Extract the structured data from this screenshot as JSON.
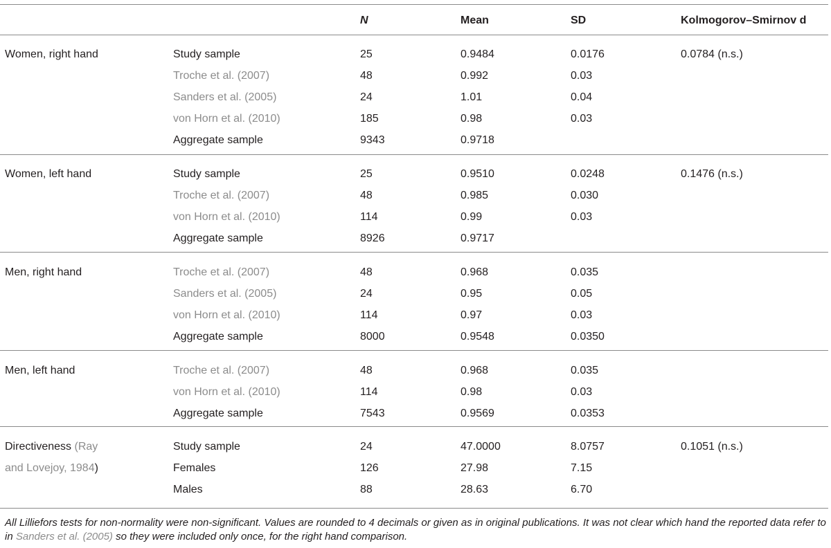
{
  "header": {
    "n": "N",
    "mean": "Mean",
    "sd": "SD",
    "ks": "Kolmogorov–Smirnov d"
  },
  "groups": [
    {
      "label": "Women, right hand",
      "ks": "0.0784 (n.s.)",
      "rows": [
        {
          "source": "Study sample",
          "n": "25",
          "mean": "0.9484",
          "sd": "0.0176"
        },
        {
          "source": "Troche et al. (2007)",
          "n": "48",
          "mean": "0.992",
          "sd": "0.03"
        },
        {
          "source": "Sanders et al. (2005)",
          "n": "24",
          "mean": "1.01",
          "sd": "0.04"
        },
        {
          "source": "von Horn et al. (2010)",
          "n": "185",
          "mean": "0.98",
          "sd": "0.03"
        },
        {
          "source": "Aggregate sample",
          "n": "9343",
          "mean": "0.9718",
          "sd": ""
        }
      ]
    },
    {
      "label": "Women, left hand",
      "ks": "0.1476 (n.s.)",
      "rows": [
        {
          "source": "Study sample",
          "n": "25",
          "mean": "0.9510",
          "sd": "0.0248"
        },
        {
          "source": "Troche et al. (2007)",
          "n": "48",
          "mean": "0.985",
          "sd": "0.030"
        },
        {
          "source": "von Horn et al. (2010)",
          "n": "114",
          "mean": "0.99",
          "sd": "0.03"
        },
        {
          "source": "Aggregate sample",
          "n": "8926",
          "mean": "0.9717",
          "sd": ""
        }
      ]
    },
    {
      "label": "Men, right hand",
      "ks": "",
      "rows": [
        {
          "source": "Troche et al. (2007)",
          "n": "48",
          "mean": "0.968",
          "sd": "0.035"
        },
        {
          "source": "Sanders et al. (2005)",
          "n": "24",
          "mean": "0.95",
          "sd": "0.05"
        },
        {
          "source": "von Horn et al. (2010)",
          "n": "114",
          "mean": "0.97",
          "sd": "0.03"
        },
        {
          "source": "Aggregate sample",
          "n": "8000",
          "mean": "0.9548",
          "sd": "0.0350"
        }
      ]
    },
    {
      "label": "Men, left hand",
      "ks": "",
      "rows": [
        {
          "source": "Troche et al. (2007)",
          "n": "48",
          "mean": "0.968",
          "sd": "0.035"
        },
        {
          "source": "von Horn et al. (2010)",
          "n": "114",
          "mean": "0.98",
          "sd": "0.03"
        },
        {
          "source": "Aggregate sample",
          "n": "7543",
          "mean": "0.9569",
          "sd": "0.0353"
        }
      ]
    },
    {
      "label_line1_plain": "Directiveness",
      "label_line1_ref": "(Ray",
      "label_line2_ref": "and Lovejoy, 1984",
      "label_line2_plain": ")",
      "ks": "0.1051 (n.s.)",
      "rows": [
        {
          "source": "Study sample",
          "n": "24",
          "mean": "47.0000",
          "sd": "8.0757"
        },
        {
          "source": "Females",
          "n": "126",
          "mean": "27.98",
          "sd": "7.15"
        },
        {
          "source": "Males",
          "n": "88",
          "mean": "28.63",
          "sd": "6.70"
        }
      ]
    }
  ],
  "footnote": {
    "part1": "All Lilliefors tests for non-normality were non-significant. Values are rounded to 4 decimals or given as in original publications. It was not clear which hand the reported data refer to in ",
    "cite": "Sanders et al. (2005)",
    "part2": " so they were included only once, for the right hand comparison."
  }
}
